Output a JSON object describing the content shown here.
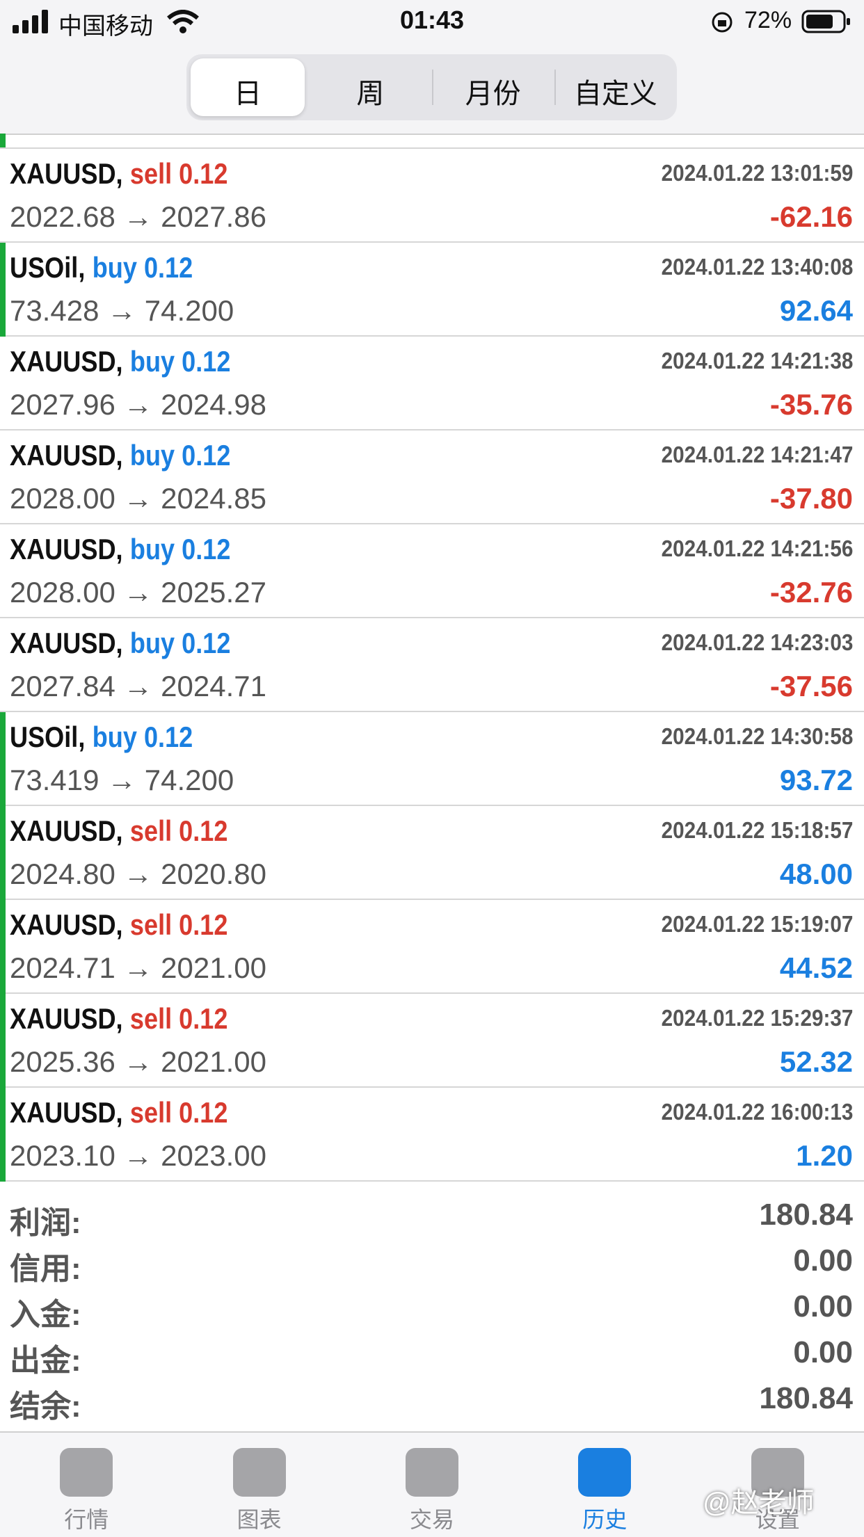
{
  "status_bar": {
    "carrier": "中国移动",
    "time": "01:43",
    "battery": "72%"
  },
  "segments": [
    "日",
    "周",
    "月份",
    "自定义"
  ],
  "trades": [
    {
      "symbol": "XAUUSD,",
      "order": "sell 0.12",
      "time": "2024.01.22 13:01:59",
      "prices": "2022.68 → 2027.86",
      "profit": "-62.16"
    },
    {
      "symbol": "USOil,",
      "order": "buy 0.12",
      "time": "2024.01.22 13:40:08",
      "prices": "73.428 → 74.200",
      "profit": "92.64"
    },
    {
      "symbol": "XAUUSD,",
      "order": "buy 0.12",
      "time": "2024.01.22 14:21:38",
      "prices": "2027.96 → 2024.98",
      "profit": "-35.76"
    },
    {
      "symbol": "XAUUSD,",
      "order": "buy 0.12",
      "time": "2024.01.22 14:21:47",
      "prices": "2028.00 → 2024.85",
      "profit": "-37.80"
    },
    {
      "symbol": "XAUUSD,",
      "order": "buy 0.12",
      "time": "2024.01.22 14:21:56",
      "prices": "2028.00 → 2025.27",
      "profit": "-32.76"
    },
    {
      "symbol": "XAUUSD,",
      "order": "buy 0.12",
      "time": "2024.01.22 14:23:03",
      "prices": "2027.84 → 2024.71",
      "profit": "-37.56"
    },
    {
      "symbol": "USOil,",
      "order": "buy 0.12",
      "time": "2024.01.22 14:30:58",
      "prices": "73.419 → 74.200",
      "profit": "93.72"
    },
    {
      "symbol": "XAUUSD,",
      "order": "sell 0.12",
      "time": "2024.01.22 15:18:57",
      "prices": "2024.80 → 2020.80",
      "profit": "48.00"
    },
    {
      "symbol": "XAUUSD,",
      "order": "sell 0.12",
      "time": "2024.01.22 15:19:07",
      "prices": "2024.71 → 2021.00",
      "profit": "44.52"
    },
    {
      "symbol": "XAUUSD,",
      "order": "sell 0.12",
      "time": "2024.01.22 15:29:37",
      "prices": "2025.36 → 2021.00",
      "profit": "52.32"
    },
    {
      "symbol": "XAUUSD,",
      "order": "sell 0.12",
      "time": "2024.01.22 16:00:13",
      "prices": "2023.10 → 2023.00",
      "profit": "1.20"
    }
  ],
  "summary": [
    {
      "label": "利润:",
      "value": "180.84"
    },
    {
      "label": "信用:",
      "value": "0.00"
    },
    {
      "label": "入金:",
      "value": "0.00"
    },
    {
      "label": "出金:",
      "value": "0.00"
    },
    {
      "label": "结余:",
      "value": "180.84"
    }
  ],
  "tabs": [
    "行情",
    "图表",
    "交易",
    "历史",
    "设置"
  ],
  "watermark": "@赵老师"
}
